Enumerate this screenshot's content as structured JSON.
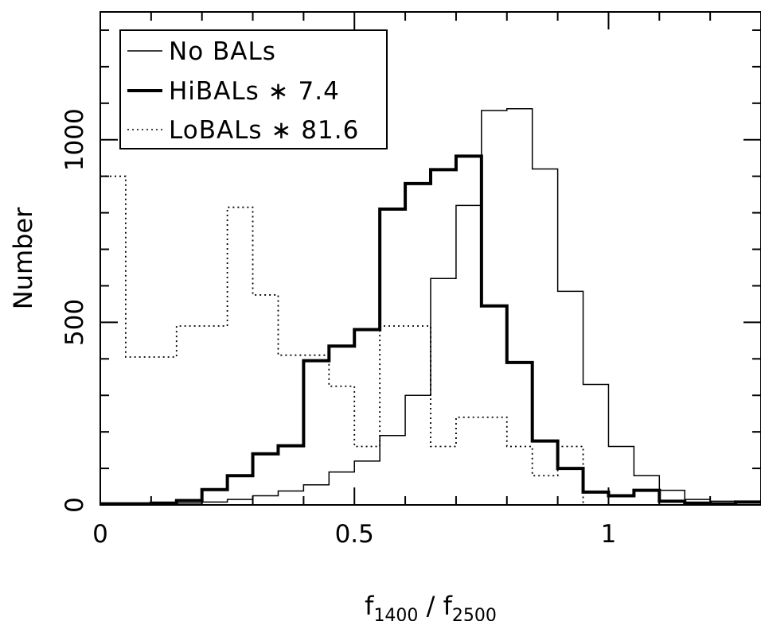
{
  "chart_data": {
    "type": "histogram",
    "xlabel": {
      "base1": "f",
      "sub1": "1400",
      "sep": " / ",
      "base2": "f",
      "sub2": "2500"
    },
    "ylabel": "Number",
    "xlim": [
      0,
      1.3
    ],
    "ylim": [
      0,
      1350
    ],
    "x_ticks": [
      {
        "value": 0,
        "label": "0"
      },
      {
        "value": 0.5,
        "label": "0.5"
      },
      {
        "value": 1,
        "label": "1"
      }
    ],
    "y_ticks": [
      {
        "value": 0,
        "label": "0"
      },
      {
        "value": 500,
        "label": "500"
      },
      {
        "value": 1000,
        "label": "1000"
      }
    ],
    "bin_edges": [
      0,
      0.05,
      0.1,
      0.15,
      0.2,
      0.25,
      0.3,
      0.35,
      0.4,
      0.45,
      0.5,
      0.55,
      0.6,
      0.65,
      0.7,
      0.75,
      0.8,
      0.85,
      0.9,
      0.95,
      1.0,
      1.05,
      1.1,
      1.15,
      1.2,
      1.25,
      1.3
    ],
    "series": [
      {
        "name": "No BALs",
        "style": "thin",
        "values": [
          2,
          2,
          3,
          5,
          8,
          15,
          25,
          38,
          55,
          90,
          120,
          190,
          300,
          620,
          820,
          1080,
          1085,
          920,
          585,
          330,
          160,
          80,
          40,
          15,
          10,
          5
        ]
      },
      {
        "name": "HiBALs * 7.4",
        "style": "thick",
        "values": [
          3,
          3,
          5,
          12,
          42,
          80,
          140,
          162,
          395,
          435,
          480,
          810,
          880,
          918,
          955,
          545,
          390,
          175,
          100,
          35,
          25,
          40,
          10,
          5,
          3,
          8
        ]
      },
      {
        "name": "LoBALs * 81.6",
        "style": "dotted",
        "values": [
          900,
          405,
          405,
          490,
          490,
          815,
          575,
          410,
          410,
          325,
          160,
          490,
          490,
          160,
          240,
          240,
          160,
          80,
          160,
          0,
          0,
          0,
          0,
          0,
          0,
          0
        ]
      }
    ]
  },
  "legend": {
    "items": [
      {
        "label": "No BALs",
        "style": "thin"
      },
      {
        "label": "HiBALs ∗ 7.4",
        "style": "thick"
      },
      {
        "label": "LoBALs ∗ 81.6",
        "style": "dotted"
      }
    ]
  }
}
